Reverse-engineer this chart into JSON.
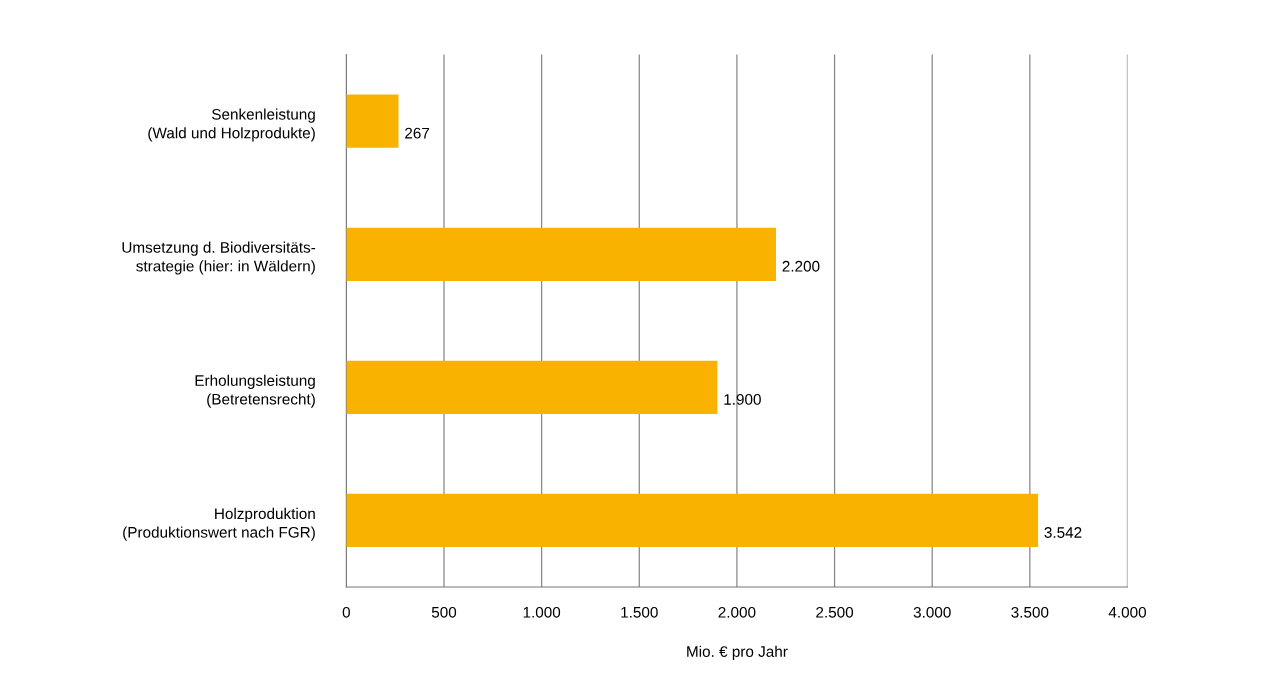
{
  "chart_data": {
    "type": "bar",
    "orientation": "horizontal",
    "categories": [
      "Senkenleistung\n(Wald und Holzprodukte)",
      "Umsetzung d. Biodiversitäts-\nstrategie (hier: in Wäldern)",
      "Erholungsleistung\n(Betretensrecht)",
      "Holzproduktion\n(Produktionswert nach FGR)"
    ],
    "values": [
      267,
      2200,
      1900,
      3542
    ],
    "value_labels": [
      "267",
      "2.200",
      "1.900",
      "3.542"
    ],
    "color": "#f9b200",
    "xlabel": "Mio. € pro Jahr",
    "xlim": [
      0,
      4000
    ],
    "xticks": [
      0,
      500,
      {
        "value": 1000,
        "label": "1.000"
      },
      {
        "value": 1500,
        "label": "1.500"
      },
      {
        "value": 2000,
        "label": "2.000"
      },
      {
        "value": 2500,
        "label": "2.500"
      },
      {
        "value": 3000,
        "label": "3.000"
      },
      {
        "value": 3500,
        "label": "3.500"
      },
      {
        "value": 4000,
        "label": "4.000"
      }
    ],
    "grid": "x"
  }
}
